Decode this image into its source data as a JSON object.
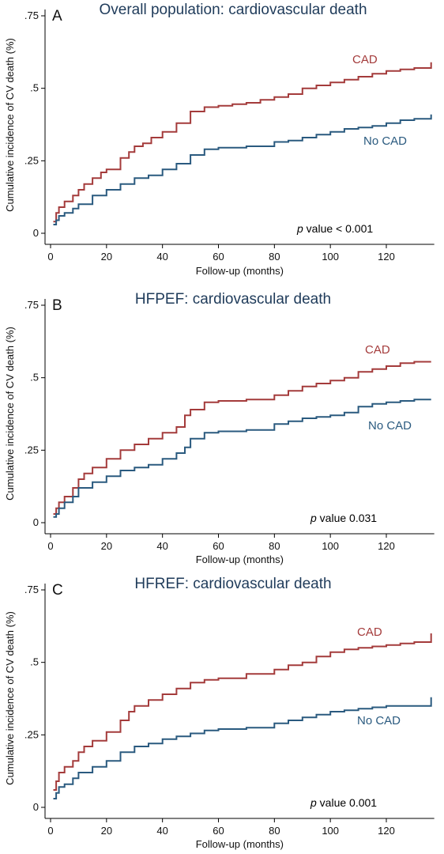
{
  "figure": {
    "title_color": "#1f3b5a"
  },
  "chart_data": [
    {
      "type": "line",
      "step": true,
      "letter": "A",
      "title": "Overall population: cardiovascular death",
      "xlabel": "Follow-up (months)",
      "ylabel": "Cumulative incidence of CV death (%)",
      "xlim": [
        0,
        136
      ],
      "ylim": [
        0,
        0.75
      ],
      "xticks": [
        0,
        20,
        40,
        60,
        80,
        100,
        120
      ],
      "yticks": [
        0,
        0.25,
        0.5,
        0.75
      ],
      "ytick_labels": [
        "0",
        ".25",
        ".5",
        ".75"
      ],
      "p_value": {
        "italic": "p",
        "rest": " value < 0.001"
      },
      "series": [
        {
          "name": "CAD",
          "color": "#a43b3b",
          "x": [
            1,
            2,
            3,
            5,
            8,
            10,
            12,
            15,
            18,
            20,
            25,
            28,
            30,
            33,
            36,
            40,
            45,
            50,
            55,
            60,
            65,
            70,
            75,
            80,
            85,
            90,
            95,
            100,
            105,
            110,
            115,
            120,
            125,
            130,
            136,
            136
          ],
          "y": [
            0.04,
            0.07,
            0.09,
            0.11,
            0.13,
            0.15,
            0.17,
            0.19,
            0.21,
            0.22,
            0.26,
            0.28,
            0.3,
            0.31,
            0.33,
            0.35,
            0.38,
            0.42,
            0.435,
            0.44,
            0.445,
            0.45,
            0.46,
            0.47,
            0.48,
            0.5,
            0.51,
            0.52,
            0.53,
            0.54,
            0.55,
            0.56,
            0.565,
            0.57,
            0.57,
            0.59
          ]
        },
        {
          "name": "No CAD",
          "color": "#2a5a7f",
          "x": [
            1,
            2,
            3,
            5,
            8,
            10,
            15,
            20,
            25,
            30,
            35,
            40,
            45,
            50,
            55,
            60,
            70,
            80,
            85,
            90,
            95,
            100,
            105,
            110,
            115,
            120,
            125,
            130,
            136,
            136
          ],
          "y": [
            0.03,
            0.045,
            0.06,
            0.07,
            0.085,
            0.1,
            0.13,
            0.15,
            0.17,
            0.19,
            0.2,
            0.22,
            0.24,
            0.27,
            0.29,
            0.295,
            0.3,
            0.315,
            0.32,
            0.33,
            0.34,
            0.35,
            0.36,
            0.365,
            0.37,
            0.38,
            0.39,
            0.395,
            0.395,
            0.41
          ]
        }
      ]
    },
    {
      "type": "line",
      "step": true,
      "letter": "B",
      "title": "HFPEF: cardiovascular death",
      "xlabel": "Follow-up (months)",
      "ylabel": "Cumulative incidence of CV death (%)",
      "xlim": [
        0,
        136
      ],
      "ylim": [
        0,
        0.75
      ],
      "xticks": [
        0,
        20,
        40,
        60,
        80,
        100,
        120
      ],
      "yticks": [
        0,
        0.25,
        0.5,
        0.75
      ],
      "ytick_labels": [
        "0",
        ".25",
        ".5",
        ".75"
      ],
      "p_value": {
        "italic": "p",
        "rest": " value 0.031"
      },
      "series": [
        {
          "name": "CAD",
          "color": "#a43b3b",
          "x": [
            1,
            2,
            3,
            5,
            8,
            10,
            12,
            15,
            20,
            25,
            30,
            35,
            40,
            45,
            48,
            50,
            55,
            60,
            70,
            80,
            85,
            90,
            95,
            100,
            105,
            110,
            115,
            120,
            125,
            130,
            136
          ],
          "y": [
            0.03,
            0.05,
            0.07,
            0.09,
            0.12,
            0.15,
            0.17,
            0.19,
            0.22,
            0.25,
            0.27,
            0.29,
            0.31,
            0.33,
            0.37,
            0.39,
            0.415,
            0.42,
            0.425,
            0.44,
            0.455,
            0.47,
            0.48,
            0.49,
            0.5,
            0.52,
            0.53,
            0.54,
            0.55,
            0.555,
            0.555
          ]
        },
        {
          "name": "No CAD",
          "color": "#2a5a7f",
          "x": [
            1,
            2,
            3,
            5,
            8,
            10,
            15,
            20,
            25,
            30,
            35,
            40,
            45,
            48,
            50,
            55,
            60,
            70,
            80,
            85,
            90,
            95,
            100,
            105,
            110,
            115,
            120,
            125,
            130,
            136
          ],
          "y": [
            0.02,
            0.03,
            0.05,
            0.07,
            0.09,
            0.12,
            0.14,
            0.16,
            0.18,
            0.19,
            0.2,
            0.22,
            0.24,
            0.26,
            0.29,
            0.31,
            0.315,
            0.32,
            0.34,
            0.35,
            0.36,
            0.365,
            0.37,
            0.38,
            0.4,
            0.41,
            0.415,
            0.42,
            0.425,
            0.425
          ]
        }
      ]
    },
    {
      "type": "line",
      "step": true,
      "letter": "C",
      "title": "HFREF: cardiovascular death",
      "xlabel": "Follow-up (months)",
      "ylabel": "Cumulative incidence of CV death (%)",
      "xlim": [
        0,
        136
      ],
      "ylim": [
        0,
        0.75
      ],
      "xticks": [
        0,
        20,
        40,
        60,
        80,
        100,
        120
      ],
      "yticks": [
        0,
        0.25,
        0.5,
        0.75
      ],
      "ytick_labels": [
        "0",
        ".25",
        ".5",
        ".75"
      ],
      "p_value": {
        "italic": "p",
        "rest": " value 0.001"
      },
      "series": [
        {
          "name": "CAD",
          "color": "#a43b3b",
          "x": [
            1,
            2,
            3,
            5,
            8,
            10,
            12,
            15,
            20,
            25,
            28,
            30,
            35,
            40,
            45,
            50,
            55,
            60,
            70,
            80,
            85,
            90,
            95,
            100,
            105,
            110,
            115,
            120,
            125,
            130,
            136,
            136
          ],
          "y": [
            0.06,
            0.09,
            0.12,
            0.14,
            0.16,
            0.19,
            0.21,
            0.23,
            0.26,
            0.3,
            0.33,
            0.35,
            0.37,
            0.39,
            0.41,
            0.43,
            0.44,
            0.445,
            0.46,
            0.475,
            0.49,
            0.5,
            0.52,
            0.535,
            0.545,
            0.55,
            0.555,
            0.56,
            0.565,
            0.57,
            0.57,
            0.6
          ]
        },
        {
          "name": "No CAD",
          "color": "#2a5a7f",
          "x": [
            1,
            2,
            3,
            5,
            8,
            10,
            15,
            20,
            25,
            30,
            35,
            40,
            45,
            50,
            55,
            60,
            70,
            80,
            85,
            90,
            95,
            100,
            105,
            110,
            115,
            120,
            125,
            130,
            136,
            136
          ],
          "y": [
            0.03,
            0.05,
            0.07,
            0.08,
            0.1,
            0.12,
            0.14,
            0.16,
            0.19,
            0.21,
            0.22,
            0.235,
            0.245,
            0.255,
            0.265,
            0.27,
            0.275,
            0.29,
            0.3,
            0.31,
            0.32,
            0.33,
            0.335,
            0.34,
            0.345,
            0.35,
            0.35,
            0.35,
            0.35,
            0.38
          ]
        }
      ]
    }
  ]
}
